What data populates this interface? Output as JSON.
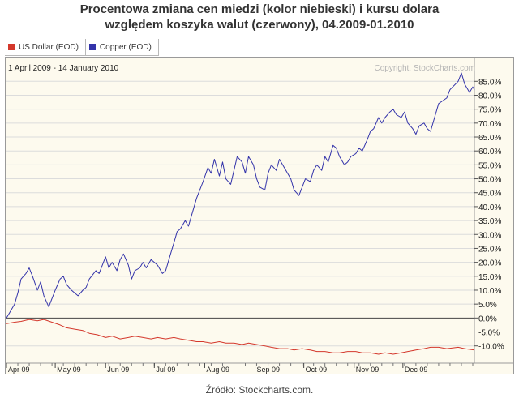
{
  "header": {
    "title_line1": "Procentowa zmiana cen miedzi (kolor niebieski) i kursu dolara",
    "title_line2": "względem koszyka walut (czerwony), 04.2009-01.2010"
  },
  "legend": [
    {
      "label": "US Dollar (EOD)",
      "color": "#d4382c"
    },
    {
      "label": "Copper (EOD)",
      "color": "#3333aa"
    }
  ],
  "period_label": "1 April 2009 - 14 January 2010",
  "copyright": "Copyright, StockCharts.com",
  "source": "Źródło: Stockcharts.com.",
  "chart_data": {
    "type": "line",
    "y_unit": "%",
    "ylim": [
      -13,
      88
    ],
    "yticks": [
      "85.0%",
      "80.0%",
      "75.0%",
      "70.0%",
      "65.0%",
      "60.0%",
      "55.0%",
      "50.0%",
      "45.0%",
      "40.0%",
      "35.0%",
      "30.0%",
      "25.0%",
      "20.0%",
      "15.0%",
      "10.0%",
      "5.0%",
      "0.0%",
      "-5.0%",
      "-10.0%"
    ],
    "ytick_values": [
      85,
      80,
      75,
      70,
      65,
      60,
      55,
      50,
      45,
      40,
      35,
      30,
      25,
      20,
      15,
      10,
      5,
      0,
      -5,
      -10
    ],
    "x_dates": [
      "2009-04-01",
      "2010-01-14"
    ],
    "x_tick_labels": [
      "Apr 09",
      "May 09",
      "Jun 09",
      "Jul 09",
      "Aug 09",
      "Sep 09",
      "Oct 09",
      "Nov 09",
      "Dec 09"
    ],
    "x_tick_dates": [
      "2009-04-01",
      "2009-05-01",
      "2009-06-01",
      "2009-07-01",
      "2009-08-01",
      "2009-09-01",
      "2009-10-01",
      "2009-11-01",
      "2009-12-01"
    ],
    "grid": true,
    "legend_position": "top-left",
    "series": [
      {
        "name": "Copper (EOD)",
        "color": "#3333aa",
        "points": [
          [
            "2009-04-01",
            0
          ],
          [
            "2009-04-03",
            2
          ],
          [
            "2009-04-06",
            5
          ],
          [
            "2009-04-08",
            9
          ],
          [
            "2009-04-10",
            14
          ],
          [
            "2009-04-13",
            16
          ],
          [
            "2009-04-15",
            18
          ],
          [
            "2009-04-17",
            15
          ],
          [
            "2009-04-20",
            10
          ],
          [
            "2009-04-22",
            13
          ],
          [
            "2009-04-24",
            8
          ],
          [
            "2009-04-27",
            4
          ],
          [
            "2009-04-29",
            7
          ],
          [
            "2009-05-01",
            10
          ],
          [
            "2009-05-04",
            14
          ],
          [
            "2009-05-06",
            15
          ],
          [
            "2009-05-08",
            12
          ],
          [
            "2009-05-11",
            10
          ],
          [
            "2009-05-13",
            9
          ],
          [
            "2009-05-15",
            8
          ],
          [
            "2009-05-18",
            10
          ],
          [
            "2009-05-20",
            11
          ],
          [
            "2009-05-22",
            14
          ],
          [
            "2009-05-26",
            17
          ],
          [
            "2009-05-28",
            16
          ],
          [
            "2009-06-01",
            22
          ],
          [
            "2009-06-03",
            18
          ],
          [
            "2009-06-05",
            20
          ],
          [
            "2009-06-08",
            17
          ],
          [
            "2009-06-10",
            21
          ],
          [
            "2009-06-12",
            23
          ],
          [
            "2009-06-15",
            19
          ],
          [
            "2009-06-17",
            14
          ],
          [
            "2009-06-19",
            17
          ],
          [
            "2009-06-22",
            18
          ],
          [
            "2009-06-24",
            20
          ],
          [
            "2009-06-26",
            18
          ],
          [
            "2009-06-29",
            21
          ],
          [
            "2009-07-01",
            20
          ],
          [
            "2009-07-03",
            19
          ],
          [
            "2009-07-06",
            16
          ],
          [
            "2009-07-08",
            17
          ],
          [
            "2009-07-10",
            21
          ],
          [
            "2009-07-13",
            27
          ],
          [
            "2009-07-15",
            31
          ],
          [
            "2009-07-17",
            32
          ],
          [
            "2009-07-20",
            35
          ],
          [
            "2009-07-22",
            33
          ],
          [
            "2009-07-24",
            37
          ],
          [
            "2009-07-27",
            43
          ],
          [
            "2009-07-29",
            46
          ],
          [
            "2009-07-31",
            49
          ],
          [
            "2009-08-03",
            54
          ],
          [
            "2009-08-05",
            52
          ],
          [
            "2009-08-07",
            57
          ],
          [
            "2009-08-10",
            51
          ],
          [
            "2009-08-12",
            56
          ],
          [
            "2009-08-14",
            50
          ],
          [
            "2009-08-17",
            48
          ],
          [
            "2009-08-19",
            53
          ],
          [
            "2009-08-21",
            58
          ],
          [
            "2009-08-24",
            56
          ],
          [
            "2009-08-26",
            52
          ],
          [
            "2009-08-28",
            58
          ],
          [
            "2009-08-31",
            55
          ],
          [
            "2009-09-02",
            50
          ],
          [
            "2009-09-04",
            47
          ],
          [
            "2009-09-07",
            46
          ],
          [
            "2009-09-09",
            52
          ],
          [
            "2009-09-11",
            55
          ],
          [
            "2009-09-14",
            53
          ],
          [
            "2009-09-16",
            57
          ],
          [
            "2009-09-18",
            55
          ],
          [
            "2009-09-21",
            52
          ],
          [
            "2009-09-23",
            50
          ],
          [
            "2009-09-25",
            46
          ],
          [
            "2009-09-28",
            44
          ],
          [
            "2009-09-30",
            47
          ],
          [
            "2009-10-02",
            50
          ],
          [
            "2009-10-05",
            49
          ],
          [
            "2009-10-07",
            53
          ],
          [
            "2009-10-09",
            55
          ],
          [
            "2009-10-12",
            53
          ],
          [
            "2009-10-14",
            58
          ],
          [
            "2009-10-16",
            56
          ],
          [
            "2009-10-19",
            62
          ],
          [
            "2009-10-21",
            61
          ],
          [
            "2009-10-23",
            58
          ],
          [
            "2009-10-26",
            55
          ],
          [
            "2009-10-28",
            56
          ],
          [
            "2009-10-30",
            58
          ],
          [
            "2009-11-02",
            59
          ],
          [
            "2009-11-04",
            61
          ],
          [
            "2009-11-06",
            60
          ],
          [
            "2009-11-09",
            64
          ],
          [
            "2009-11-11",
            67
          ],
          [
            "2009-11-13",
            68
          ],
          [
            "2009-11-16",
            72
          ],
          [
            "2009-11-18",
            70
          ],
          [
            "2009-11-20",
            72
          ],
          [
            "2009-11-23",
            74
          ],
          [
            "2009-11-25",
            75
          ],
          [
            "2009-11-27",
            73
          ],
          [
            "2009-11-30",
            72
          ],
          [
            "2009-12-02",
            74
          ],
          [
            "2009-12-04",
            70
          ],
          [
            "2009-12-07",
            68
          ],
          [
            "2009-12-09",
            66
          ],
          [
            "2009-12-11",
            69
          ],
          [
            "2009-12-14",
            70
          ],
          [
            "2009-12-16",
            68
          ],
          [
            "2009-12-18",
            67
          ],
          [
            "2009-12-21",
            73
          ],
          [
            "2009-12-23",
            77
          ],
          [
            "2009-12-28",
            79
          ],
          [
            "2009-12-30",
            82
          ],
          [
            "2010-01-04",
            85
          ],
          [
            "2010-01-06",
            88
          ],
          [
            "2010-01-08",
            84
          ],
          [
            "2010-01-11",
            81
          ],
          [
            "2010-01-13",
            83
          ],
          [
            "2010-01-14",
            82
          ]
        ]
      },
      {
        "name": "US Dollar (EOD)",
        "color": "#d4382c",
        "points": [
          [
            "2009-04-01",
            -2
          ],
          [
            "2009-04-06",
            -1.5
          ],
          [
            "2009-04-10",
            -1.2
          ],
          [
            "2009-04-15",
            -0.5
          ],
          [
            "2009-04-20",
            -1.0
          ],
          [
            "2009-04-24",
            -0.5
          ],
          [
            "2009-04-29",
            -1.5
          ],
          [
            "2009-05-04",
            -2.5
          ],
          [
            "2009-05-08",
            -3.5
          ],
          [
            "2009-05-13",
            -4
          ],
          [
            "2009-05-18",
            -4.5
          ],
          [
            "2009-05-22",
            -5.5
          ],
          [
            "2009-05-27",
            -6
          ],
          [
            "2009-06-01",
            -7
          ],
          [
            "2009-06-05",
            -6.5
          ],
          [
            "2009-06-10",
            -7.5
          ],
          [
            "2009-06-15",
            -7
          ],
          [
            "2009-06-19",
            -6.5
          ],
          [
            "2009-06-24",
            -7
          ],
          [
            "2009-06-29",
            -7.5
          ],
          [
            "2009-07-03",
            -7
          ],
          [
            "2009-07-08",
            -7.5
          ],
          [
            "2009-07-13",
            -7
          ],
          [
            "2009-07-17",
            -7.5
          ],
          [
            "2009-07-22",
            -8
          ],
          [
            "2009-07-27",
            -8.5
          ],
          [
            "2009-07-31",
            -8.5
          ],
          [
            "2009-08-05",
            -9
          ],
          [
            "2009-08-10",
            -8.5
          ],
          [
            "2009-08-14",
            -9
          ],
          [
            "2009-08-19",
            -9
          ],
          [
            "2009-08-24",
            -9.5
          ],
          [
            "2009-08-28",
            -9
          ],
          [
            "2009-09-02",
            -9.5
          ],
          [
            "2009-09-07",
            -10
          ],
          [
            "2009-09-11",
            -10.5
          ],
          [
            "2009-09-16",
            -11
          ],
          [
            "2009-09-21",
            -11
          ],
          [
            "2009-09-25",
            -11.5
          ],
          [
            "2009-09-30",
            -11
          ],
          [
            "2009-10-05",
            -11.5
          ],
          [
            "2009-10-09",
            -12
          ],
          [
            "2009-10-14",
            -12
          ],
          [
            "2009-10-19",
            -12.5
          ],
          [
            "2009-10-23",
            -12.5
          ],
          [
            "2009-10-28",
            -12
          ],
          [
            "2009-11-02",
            -12
          ],
          [
            "2009-11-06",
            -12.5
          ],
          [
            "2009-11-11",
            -12.5
          ],
          [
            "2009-11-16",
            -13
          ],
          [
            "2009-11-20",
            -12.5
          ],
          [
            "2009-11-25",
            -13
          ],
          [
            "2009-11-30",
            -12.5
          ],
          [
            "2009-12-04",
            -12
          ],
          [
            "2009-12-09",
            -11.5
          ],
          [
            "2009-12-14",
            -11
          ],
          [
            "2009-12-18",
            -10.5
          ],
          [
            "2009-12-23",
            -10.5
          ],
          [
            "2009-12-28",
            -11
          ],
          [
            "2010-01-04",
            -10.5
          ],
          [
            "2010-01-08",
            -11
          ],
          [
            "2010-01-14",
            -11.5
          ]
        ]
      }
    ]
  }
}
